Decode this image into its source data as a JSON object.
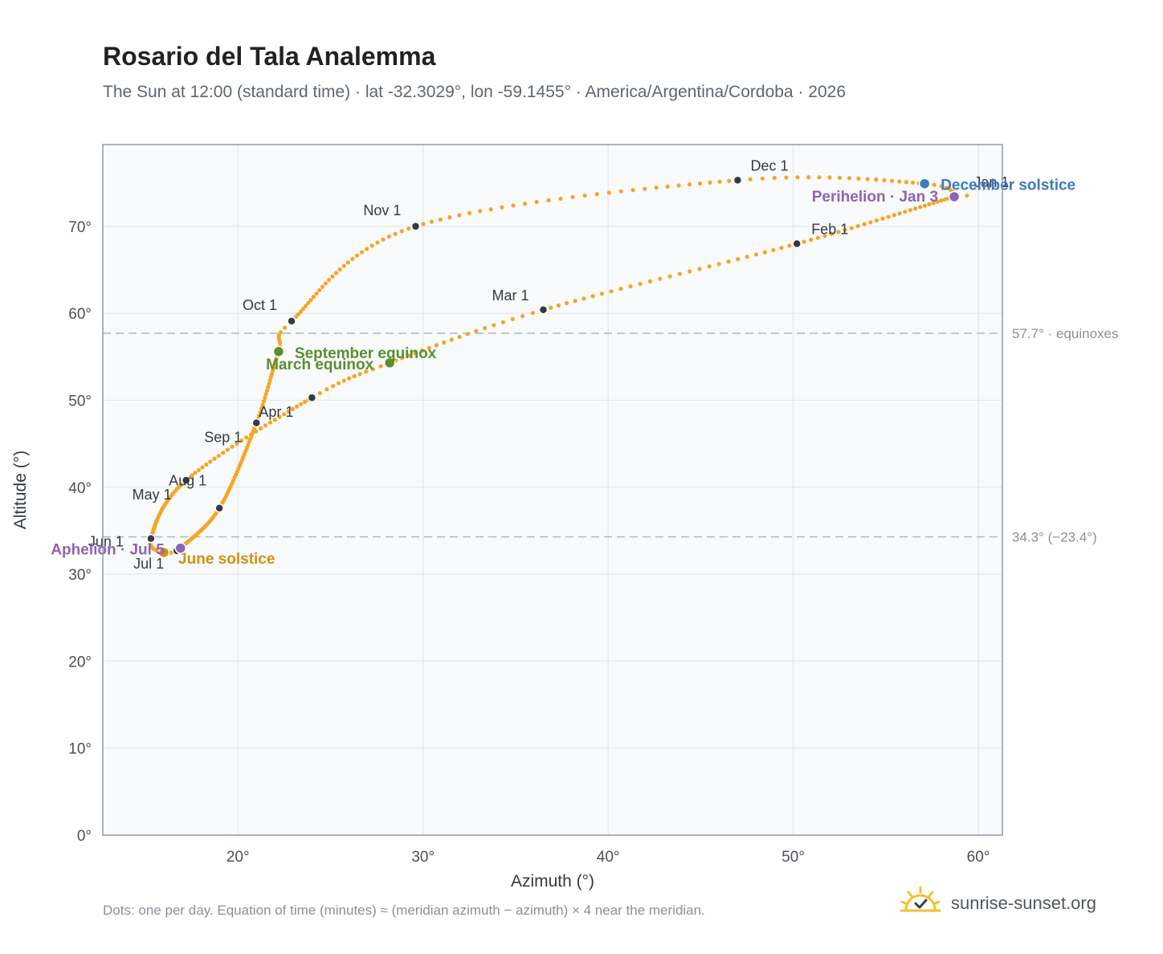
{
  "title": "Rosario del Tala Analemma",
  "subtitle": "The Sun at 12:00 (standard time) · lat -32.3029°, lon -59.1455° · America/Argentina/Cordoba · 2026",
  "footnote": "Dots: one per day. Equation of time (minutes) ≈ (meridian azimuth − azimuth) × 4 near the meridian.",
  "brand": {
    "name": "sunrise-sunset.org",
    "icon": "sun-check-icon"
  },
  "colors": {
    "curve": "#f5a623",
    "month_marker": "#333a40",
    "equinox": "#5a8f2e",
    "june_solstice": "#d4900e",
    "december_solstice": "#3b7bbf",
    "apsis": "#8e64b4",
    "reference_line": "#a9b8c6",
    "plot_bg": "#f8fafc",
    "axis": "#8f9aa8",
    "text": "#4a4f57"
  },
  "chart_data": {
    "type": "scatter",
    "xlabel": "Azimuth (°)",
    "ylabel": "Altitude (°)",
    "xlim": [
      12.7,
      61.3
    ],
    "ylim": [
      0,
      79.4
    ],
    "x_ticks": [
      20,
      30,
      40,
      50,
      60
    ],
    "y_ticks": [
      0,
      10,
      20,
      30,
      40,
      50,
      60,
      70
    ],
    "tick_suffix": "°",
    "grid": true,
    "curve_keypoints": [
      {
        "date": "Jan 1",
        "az": 58.8,
        "alt": 73.2
      },
      {
        "date": "Jan 3",
        "az": 58.7,
        "alt": 73.4
      },
      {
        "date": "Feb 1",
        "az": 50.2,
        "alt": 68.0
      },
      {
        "date": "Mar 1",
        "az": 36.5,
        "alt": 60.4
      },
      {
        "date": "Mar 20",
        "az": 28.2,
        "alt": 54.3
      },
      {
        "date": "Apr 1",
        "az": 24.0,
        "alt": 50.3
      },
      {
        "date": "May 1",
        "az": 17.2,
        "alt": 40.8
      },
      {
        "date": "Jun 1",
        "az": 15.3,
        "alt": 34.1
      },
      {
        "date": "Jun 21",
        "az": 16.0,
        "alt": 32.5
      },
      {
        "date": "Jul 1",
        "az": 16.7,
        "alt": 32.7
      },
      {
        "date": "Jul 5",
        "az": 16.9,
        "alt": 33.0
      },
      {
        "date": "Aug 1",
        "az": 19.0,
        "alt": 37.6
      },
      {
        "date": "Sep 1",
        "az": 21.0,
        "alt": 47.4
      },
      {
        "date": "Sep 23",
        "az": 22.2,
        "alt": 55.6
      },
      {
        "date": "Oct 1",
        "az": 22.9,
        "alt": 59.1
      },
      {
        "date": "Nov 1",
        "az": 29.6,
        "alt": 70.0
      },
      {
        "date": "Dec 1",
        "az": 47.0,
        "alt": 75.3
      },
      {
        "date": "Dec 21",
        "az": 57.1,
        "alt": 74.9
      },
      {
        "date": "Dec 31",
        "az": 58.8,
        "alt": 73.2
      }
    ],
    "month_markers": [
      {
        "label": "Jan 1",
        "az": 58.8,
        "alt": 73.2
      },
      {
        "label": "Feb 1",
        "az": 50.2,
        "alt": 68.0
      },
      {
        "label": "Mar 1",
        "az": 36.5,
        "alt": 60.4
      },
      {
        "label": "Apr 1",
        "az": 24.0,
        "alt": 50.3
      },
      {
        "label": "May 1",
        "az": 17.2,
        "alt": 40.8
      },
      {
        "label": "Jun 1",
        "az": 15.3,
        "alt": 34.1
      },
      {
        "label": "Jul 1",
        "az": 16.7,
        "alt": 32.7
      },
      {
        "label": "Aug 1",
        "az": 19.0,
        "alt": 37.6
      },
      {
        "label": "Sep 1",
        "az": 21.0,
        "alt": 47.4
      },
      {
        "label": "Oct 1",
        "az": 22.9,
        "alt": 59.1
      },
      {
        "label": "Nov 1",
        "az": 29.6,
        "alt": 70.0
      },
      {
        "label": "Dec 1",
        "az": 47.0,
        "alt": 75.3
      }
    ],
    "events": [
      {
        "label": "March equinox",
        "az": 28.2,
        "alt": 54.3,
        "color_key": "equinox"
      },
      {
        "label": "September equinox",
        "az": 22.2,
        "alt": 55.6,
        "color_key": "equinox"
      },
      {
        "label": "June solstice",
        "az": 16.0,
        "alt": 32.5,
        "color_key": "june_solstice"
      },
      {
        "label": "December solstice",
        "az": 57.1,
        "alt": 74.9,
        "color_key": "december_solstice"
      },
      {
        "label": "Perihelion · Jan 3",
        "az": 58.7,
        "alt": 73.4,
        "color_key": "apsis"
      },
      {
        "label": "Aphelion · Jul 5",
        "az": 16.9,
        "alt": 33.0,
        "color_key": "apsis"
      }
    ],
    "reference_lines": [
      {
        "alt": 57.7,
        "label": "57.7° · equinoxes"
      },
      {
        "alt": 34.3,
        "label": "34.3° (−23.4°)"
      }
    ]
  }
}
